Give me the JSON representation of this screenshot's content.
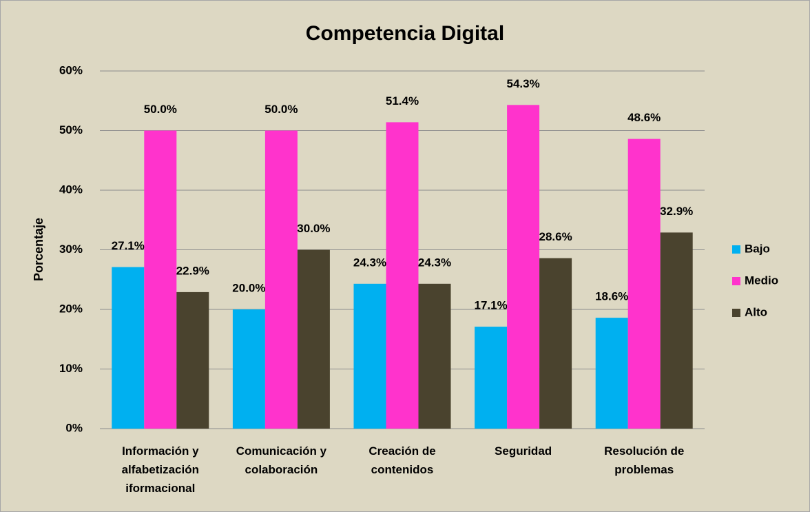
{
  "chart_data": {
    "type": "bar",
    "title": "Competencia Digital",
    "y_label": "Porcentaje",
    "categories": [
      "Información y alfabetización iformacional",
      "Comunicación y colaboración",
      "Creación de contenidos",
      "Seguridad",
      "Resolución de problemas"
    ],
    "series": [
      {
        "name": "Bajo",
        "color": "#00b0f0",
        "values": [
          27.1,
          20.0,
          24.3,
          17.1,
          18.6
        ],
        "value_labels": [
          "27.1%",
          "20.0%",
          "24.3%",
          "17.1%",
          "18.6%"
        ]
      },
      {
        "name": "Medio",
        "color": "#ff33cc",
        "values": [
          50.0,
          50.0,
          51.4,
          54.3,
          48.6
        ],
        "value_labels": [
          "50.0%",
          "50.0%",
          "51.4%",
          "54.3%",
          "48.6%"
        ]
      },
      {
        "name": "Alto",
        "color": "#4a432e",
        "values": [
          22.9,
          30.0,
          24.3,
          28.6,
          32.9
        ],
        "value_labels": [
          "22.9%",
          "30.0%",
          "24.3%",
          "28.6%",
          "32.9%"
        ]
      }
    ],
    "ylim": [
      0,
      60
    ],
    "yticks": [
      {
        "value": 0,
        "label": "0%"
      },
      {
        "value": 10,
        "label": "10%"
      },
      {
        "value": 20,
        "label": "20%"
      },
      {
        "value": 30,
        "label": "30%"
      },
      {
        "value": 40,
        "label": "40%"
      },
      {
        "value": 50,
        "label": "50%"
      },
      {
        "value": 60,
        "label": "60%"
      }
    ],
    "grid": true,
    "legend": "right"
  }
}
